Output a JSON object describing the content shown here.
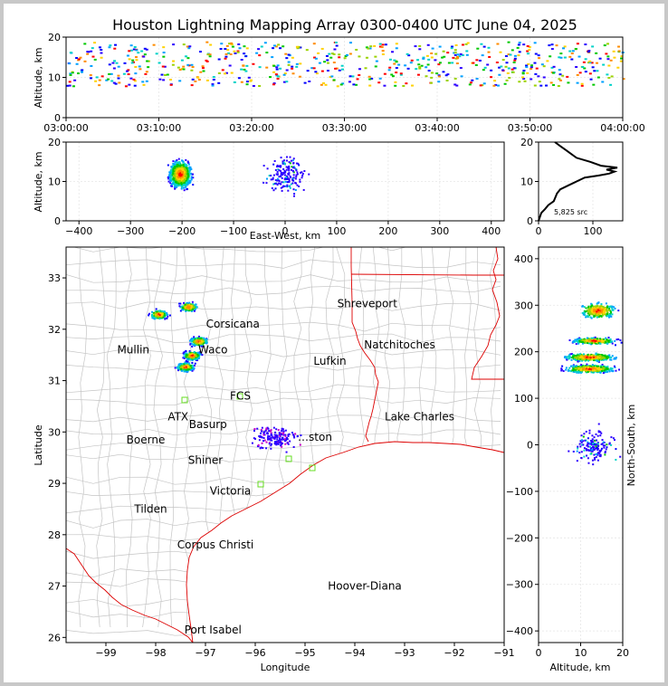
{
  "title": "Houston Lightning Mapping Array 0300-0400 UTC June 04, 2025",
  "colors": {
    "ticks": "#000000",
    "state_lines": "#dd0000",
    "county_lines": "#b4b4b4",
    "hoover_diana": "#0000ee",
    "region_label": "#ff7f2a",
    "station": "#66dd22"
  },
  "chart_data": [
    {
      "type": "scatter",
      "panel": "altitude-time",
      "ylabel": "Altitude, km",
      "xlabel": "",
      "x_ticks": [
        "03:00:00",
        "03:10:00",
        "03:20:00",
        "03:30:00",
        "03:40:00",
        "03:50:00",
        "04:00:00"
      ],
      "y_ticks": [
        "0",
        "10",
        "20"
      ],
      "xlim": [
        "03:00:00",
        "04:00:00"
      ],
      "ylim": [
        0,
        20
      ],
      "altitude_band_km": [
        8,
        19
      ],
      "grid": true
    },
    {
      "type": "scatter",
      "panel": "altitude-east-west",
      "xlabel": "East-West, km",
      "ylabel": "Altitude, km",
      "x_ticks": [
        "−400",
        "−300",
        "−200",
        "−100",
        "0",
        "100",
        "200",
        "300",
        "400"
      ],
      "y_ticks": [
        "0",
        "10",
        "20"
      ],
      "xlim": [
        -425,
        425
      ],
      "ylim": [
        0,
        20
      ],
      "clusters": [
        {
          "x_center_km": -205,
          "x_spread_km": 25,
          "alt_center_km": 12,
          "alt_spread_km": 4,
          "density": "high"
        },
        {
          "x_center_km": 0,
          "x_spread_km": 45,
          "alt_center_km": 12,
          "alt_spread_km": 6,
          "density": "low"
        }
      ],
      "grid": true
    },
    {
      "type": "line",
      "panel": "altitude-histogram",
      "x_ticks": [
        "0",
        "100"
      ],
      "y_ticks": [
        "0",
        "10",
        "20"
      ],
      "xlim": [
        0,
        155
      ],
      "ylim": [
        0,
        20
      ],
      "annotation": "5,825 src",
      "profile": [
        [
          0,
          0
        ],
        [
          5,
          2
        ],
        [
          12,
          3
        ],
        [
          18,
          4
        ],
        [
          28,
          5
        ],
        [
          34,
          7
        ],
        [
          40,
          8
        ],
        [
          55,
          9
        ],
        [
          70,
          10
        ],
        [
          85,
          11
        ],
        [
          110,
          11.5
        ],
        [
          130,
          12
        ],
        [
          140,
          12.5
        ],
        [
          125,
          13
        ],
        [
          145,
          13.5
        ],
        [
          115,
          14
        ],
        [
          95,
          15
        ],
        [
          70,
          16
        ],
        [
          60,
          17
        ],
        [
          50,
          18
        ],
        [
          40,
          19
        ],
        [
          30,
          20
        ]
      ],
      "grid": true
    },
    {
      "type": "scatter",
      "panel": "plan-view-map",
      "xlabel": "Longitude",
      "ylabel": "Latitude",
      "x_ticks": [
        "−99",
        "−98",
        "−97",
        "−96",
        "−95",
        "−94",
        "−93",
        "−92",
        "−91"
      ],
      "y_ticks": [
        "26",
        "27",
        "28",
        "29",
        "30",
        "31",
        "32",
        "33"
      ],
      "xlim": [
        -99.8,
        -91
      ],
      "ylim": [
        25.9,
        33.6
      ],
      "clusters": [
        {
          "lon": -97.42,
          "lat": 31.28,
          "density": "high"
        },
        {
          "lon": -97.28,
          "lat": 31.5,
          "density": "high"
        },
        {
          "lon": -97.15,
          "lat": 31.78,
          "density": "high"
        },
        {
          "lon": -97.35,
          "lat": 32.45,
          "density": "medium"
        },
        {
          "lon": -97.95,
          "lat": 32.3,
          "density": "medium"
        },
        {
          "lon": -95.6,
          "lat": 29.9,
          "density": "low"
        }
      ],
      "grid": false
    },
    {
      "type": "scatter",
      "panel": "north-south-altitude",
      "xlabel": "Altitude, km",
      "ylabel": "North-South, km",
      "x_ticks": [
        "0",
        "10",
        "20"
      ],
      "y_ticks": [
        "−400",
        "−300",
        "−200",
        "−100",
        "0",
        "100",
        "200",
        "300",
        "400"
      ],
      "xlim": [
        0,
        20
      ],
      "ylim": [
        -425,
        425
      ],
      "clusters": [
        {
          "ns_center_km": 290,
          "ns_spread_km": 20,
          "alt_center_km": 14,
          "alt_spread_km": 5,
          "density": "medium"
        },
        {
          "ns_center_km": 225,
          "ns_spread_km": 8,
          "alt_center_km": 13,
          "alt_spread_km": 6,
          "density": "medium"
        },
        {
          "ns_center_km": 190,
          "ns_spread_km": 10,
          "alt_center_km": 12,
          "alt_spread_km": 7,
          "density": "high"
        },
        {
          "ns_center_km": 165,
          "ns_spread_km": 10,
          "alt_center_km": 12,
          "alt_spread_km": 7,
          "density": "high"
        },
        {
          "ns_center_km": 0,
          "ns_spread_km": 45,
          "alt_center_km": 13,
          "alt_spread_km": 6,
          "density": "low"
        }
      ],
      "grid": true
    }
  ],
  "map_labels": [
    {
      "text": "Shreveport",
      "lon": -93.75,
      "lat": 32.5,
      "color": "#000000"
    },
    {
      "text": "Corsicana",
      "lon": -96.45,
      "lat": 32.1,
      "color": "#000000"
    },
    {
      "text": "Natchitoches",
      "lon": -93.1,
      "lat": 31.7,
      "color": "#000000"
    },
    {
      "text": "Mullin",
      "lon": -98.45,
      "lat": 31.6,
      "color": "#ff7f2a"
    },
    {
      "text": "Waco",
      "lon": -96.85,
      "lat": 31.6,
      "color": "#000000"
    },
    {
      "text": "Lufkin",
      "lon": -94.5,
      "lat": 31.38,
      "color": "#000000"
    },
    {
      "text": "FCS",
      "lon": -96.3,
      "lat": 30.7,
      "color": "#000000"
    },
    {
      "text": "ATX",
      "lon": -97.55,
      "lat": 30.3,
      "color": "#ff7f2a"
    },
    {
      "text": "Basurp",
      "lon": -96.95,
      "lat": 30.15,
      "color": "#000000"
    },
    {
      "text": "Lake Charles",
      "lon": -92.7,
      "lat": 30.3,
      "color": "#000000"
    },
    {
      "text": "Boerne",
      "lon": -98.2,
      "lat": 29.85,
      "color": "#000000"
    },
    {
      "text": "…ston",
      "lon": -94.8,
      "lat": 29.9,
      "color": "#ff7f2a"
    },
    {
      "text": "Shiner",
      "lon": -97.0,
      "lat": 29.45,
      "color": "#000000"
    },
    {
      "text": "Victoria",
      "lon": -96.5,
      "lat": 28.85,
      "color": "#000000"
    },
    {
      "text": "Tilden",
      "lon": -98.1,
      "lat": 28.5,
      "color": "#000000"
    },
    {
      "text": "Corpus Christi",
      "lon": -96.8,
      "lat": 27.8,
      "color": "#000000"
    },
    {
      "text": "Hoover-Diana",
      "lon": -93.8,
      "lat": 27.0,
      "color": "#0000ee"
    },
    {
      "text": "Port Isabel",
      "lon": -96.85,
      "lat": 26.15,
      "color": "#000000"
    }
  ]
}
